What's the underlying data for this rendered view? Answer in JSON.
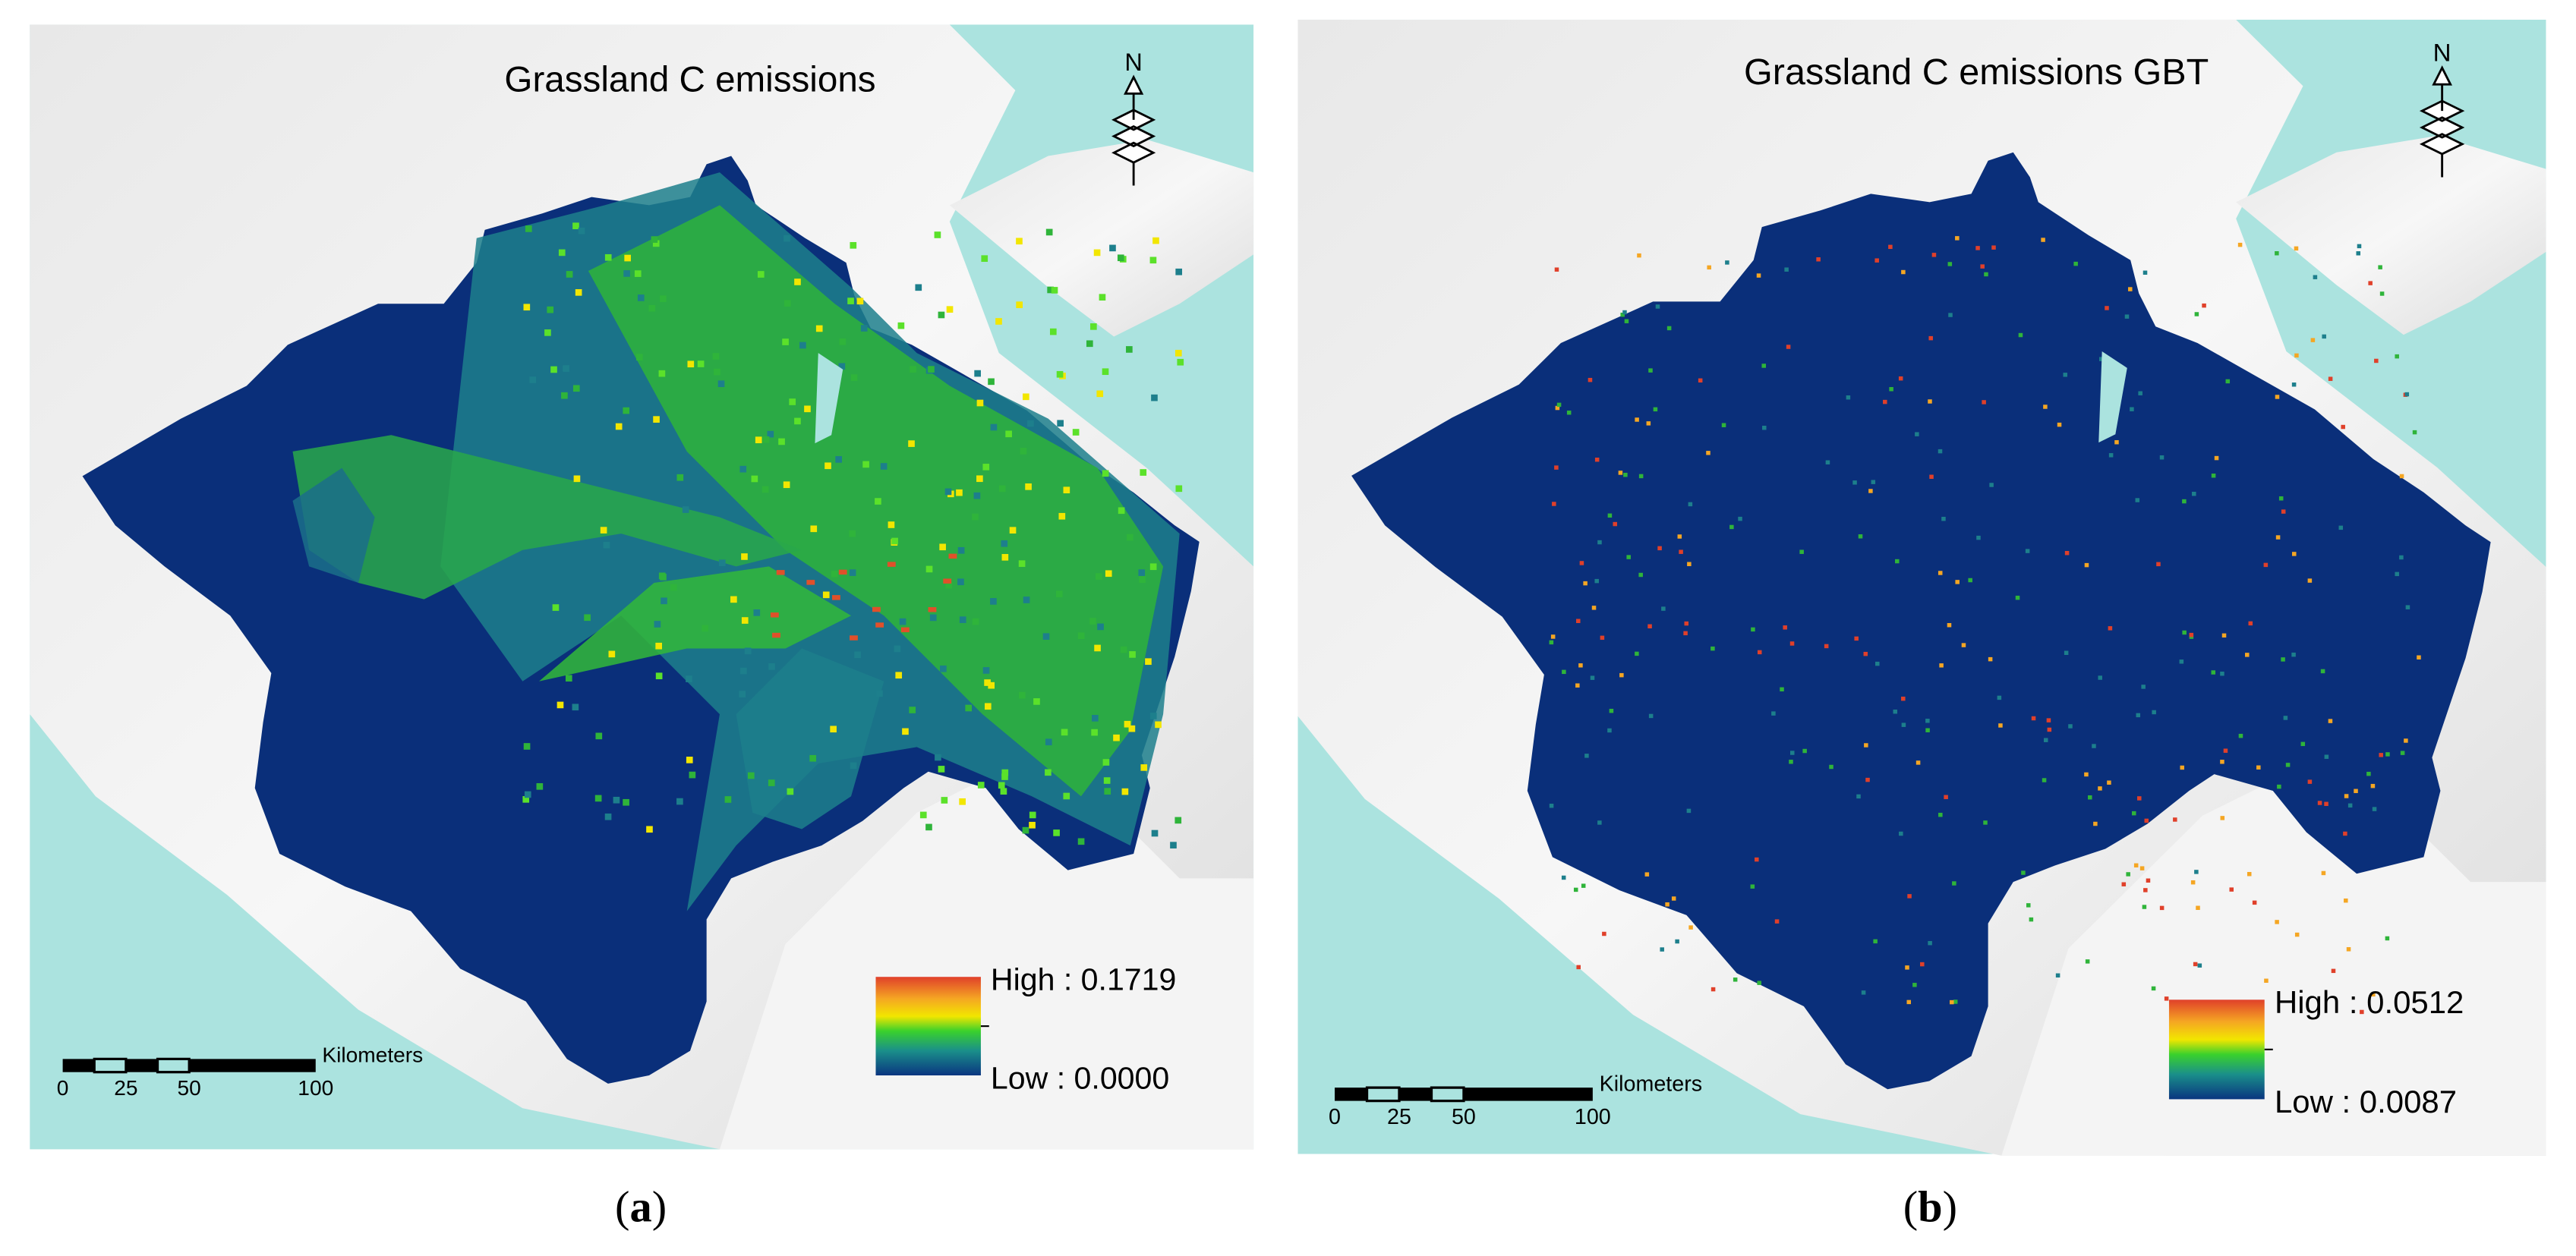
{
  "panels": [
    {
      "title": "Grassland C emissions",
      "north": "N",
      "legend": {
        "high": "High : 0.1719",
        "low": "Low : 0.0000"
      },
      "scale": {
        "unit": "Kilometers",
        "ticks": [
          0,
          25,
          50,
          100
        ]
      },
      "caption": [
        "(",
        "a",
        ")"
      ]
    },
    {
      "title": "Grassland C emissions GBT",
      "north": "N",
      "legend": {
        "high": "High : 0.0512",
        "low": "Low : 0.0087"
      },
      "scale": {
        "unit": "Kilometers",
        "ticks": [
          0,
          25,
          50,
          100
        ]
      },
      "caption": [
        "(",
        "b",
        ")"
      ]
    }
  ]
}
